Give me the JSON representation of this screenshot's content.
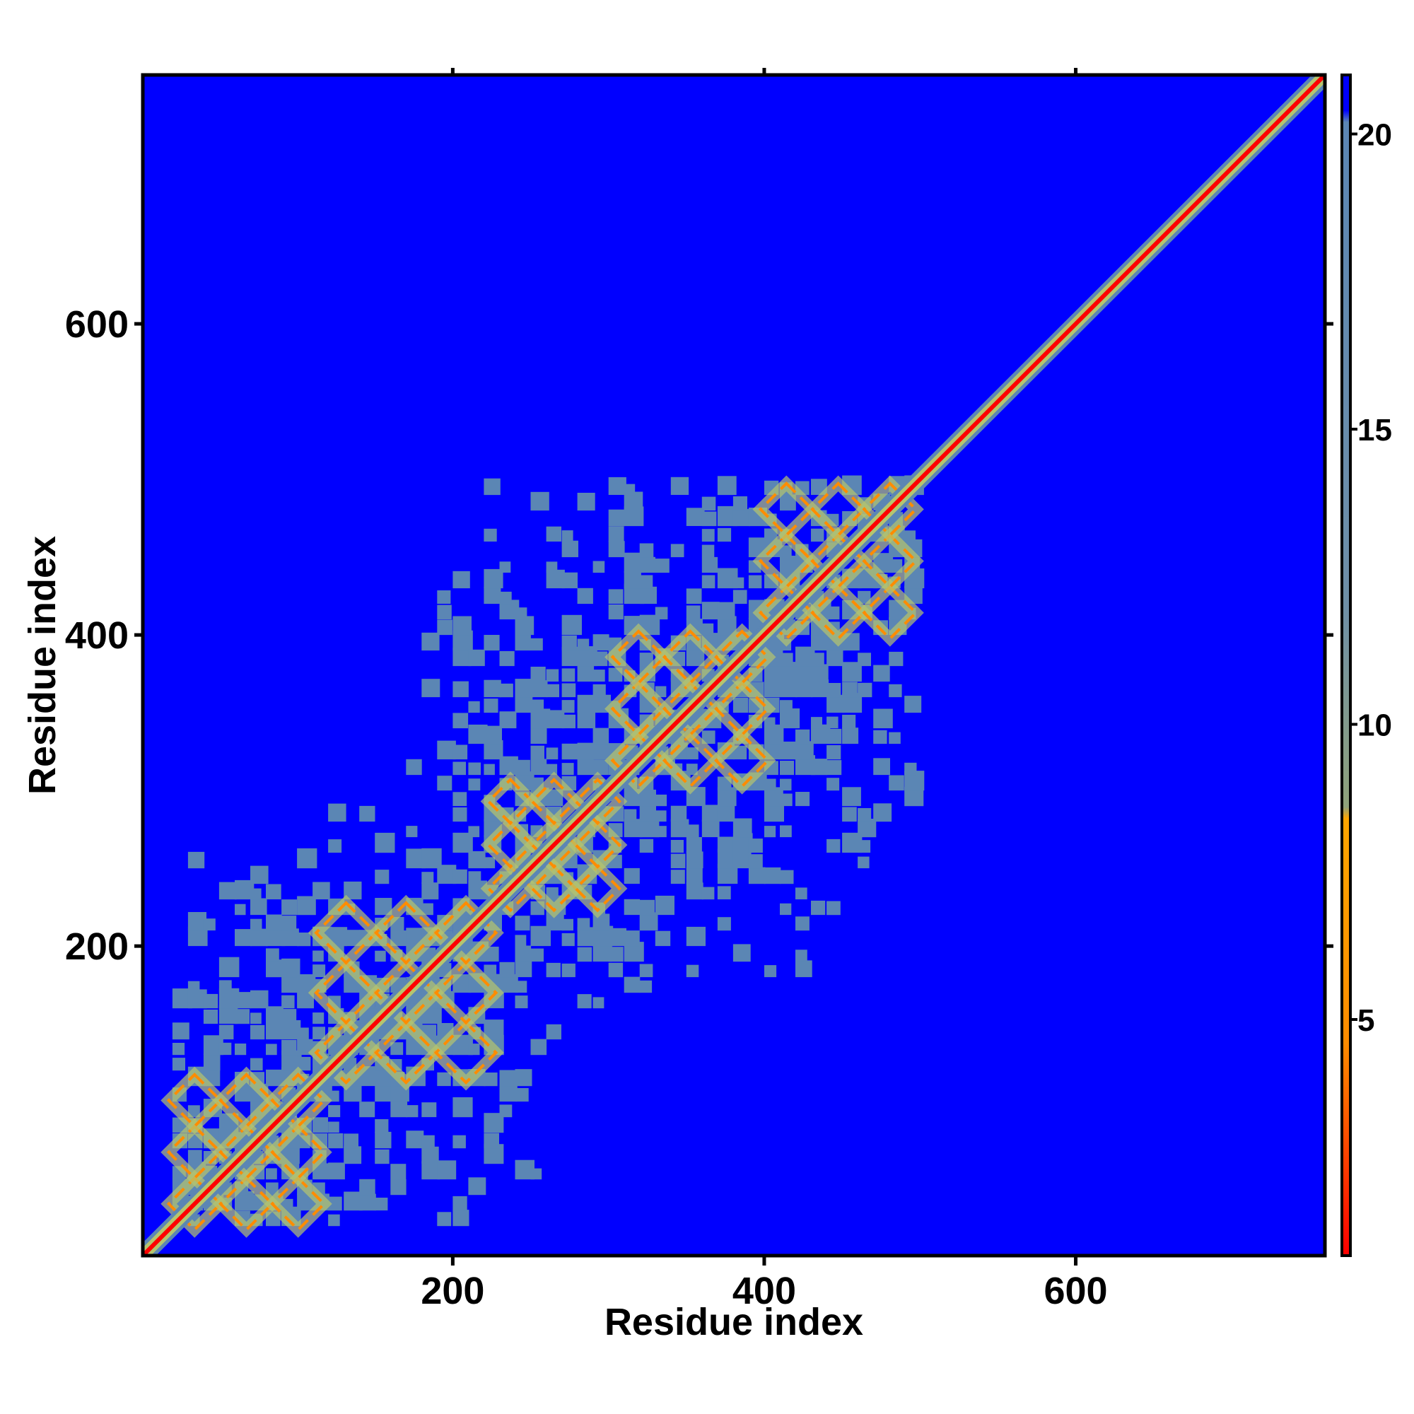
{
  "chart_data": {
    "type": "heatmap",
    "title": "",
    "xlabel": "Residue index",
    "ylabel": "Residue index",
    "xlim": [
      1,
      760
    ],
    "ylim": [
      1,
      760
    ],
    "x_ticks": [
      200,
      400,
      600
    ],
    "y_ticks": [
      200,
      400,
      600
    ],
    "colorbar": {
      "range": [
        1,
        21
      ],
      "ticks": [
        5,
        10,
        15,
        20
      ],
      "colors": [
        "#ff0000",
        "#ff8c00",
        "#8fa27a",
        "#5b86b4",
        "#0000ff"
      ]
    },
    "background_color": "#0000ff",
    "contact_color": "#5b86b4",
    "diagonal_color": "#ff0000",
    "rim_color": "#ff8c00",
    "core_color": "#b5c56e",
    "contact_region": {
      "band_end_residue": 495,
      "tail_end_residue": 760
    },
    "domain_blocks": [
      {
        "start": 20,
        "end": 115
      },
      {
        "start": 115,
        "end": 225
      },
      {
        "start": 225,
        "end": 305
      },
      {
        "start": 305,
        "end": 400
      },
      {
        "start": 400,
        "end": 495
      }
    ]
  }
}
